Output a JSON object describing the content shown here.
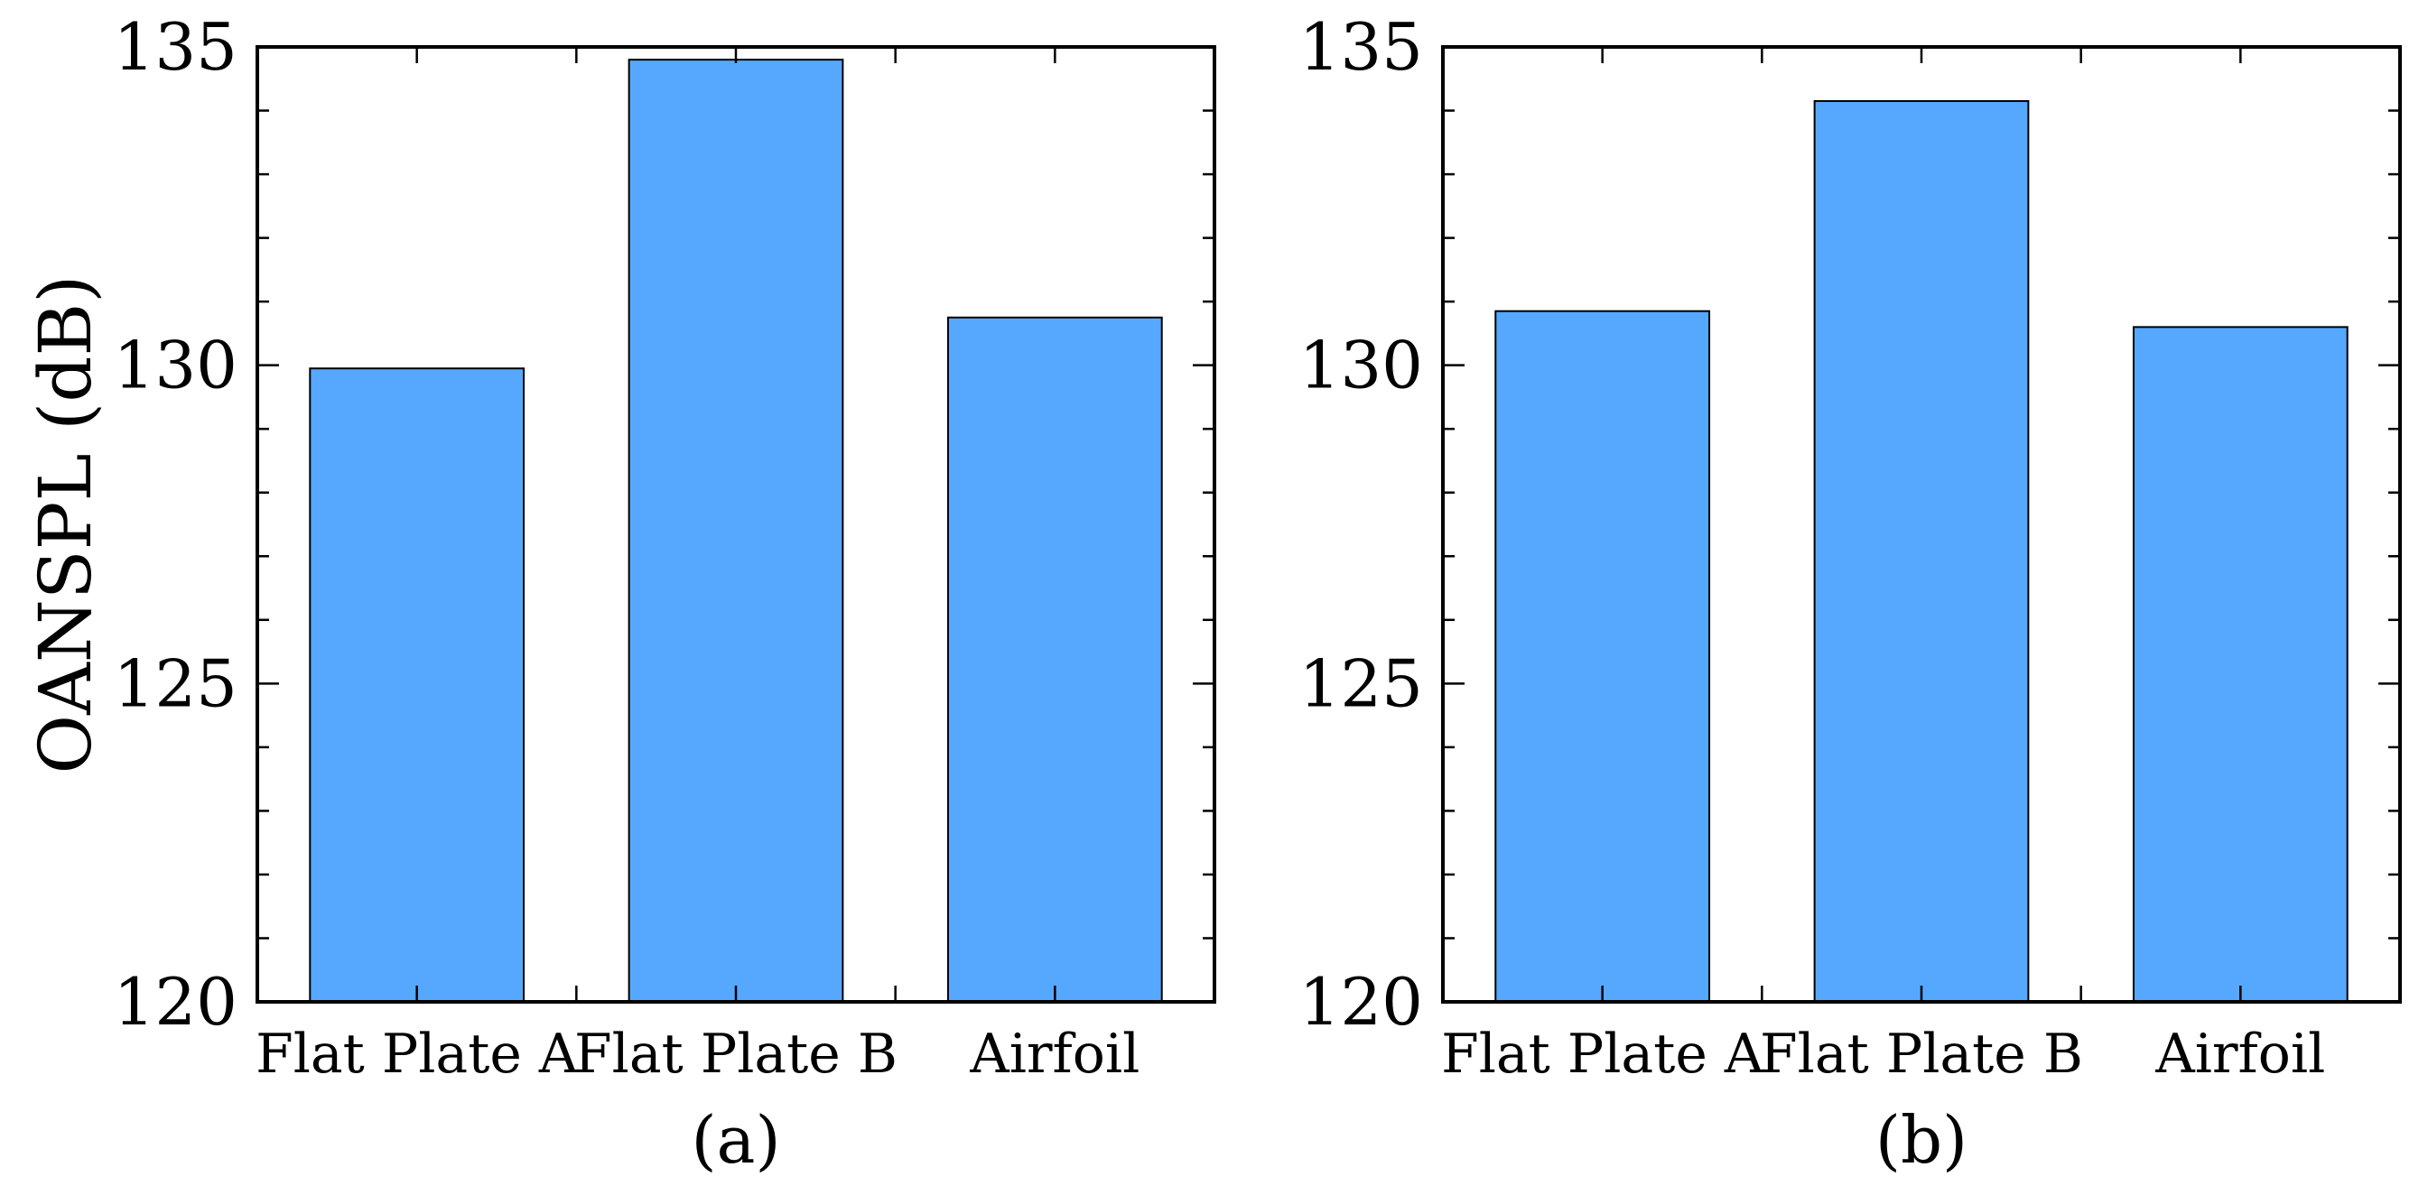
{
  "chart_data": [
    {
      "type": "bar",
      "panel_label": "(a)",
      "categories": [
        "Flat Plate A",
        "Flat Plate B",
        "Airfoil"
      ],
      "values": [
        129.95,
        134.8,
        130.75
      ],
      "ylabel": "OANSPL (dB)",
      "ylim": [
        120,
        135
      ],
      "yticks": [
        120,
        125,
        130,
        135
      ],
      "bar_color": "#56a8ff",
      "grid": false
    },
    {
      "type": "bar",
      "panel_label": "(b)",
      "categories": [
        "Flat Plate A",
        "Flat Plate B",
        "Airfoil"
      ],
      "values": [
        130.85,
        134.15,
        130.6
      ],
      "ylabel": "",
      "ylim": [
        120,
        135
      ],
      "yticks": [
        120,
        125,
        130,
        135
      ],
      "bar_color": "#56a8ff",
      "grid": false
    }
  ]
}
